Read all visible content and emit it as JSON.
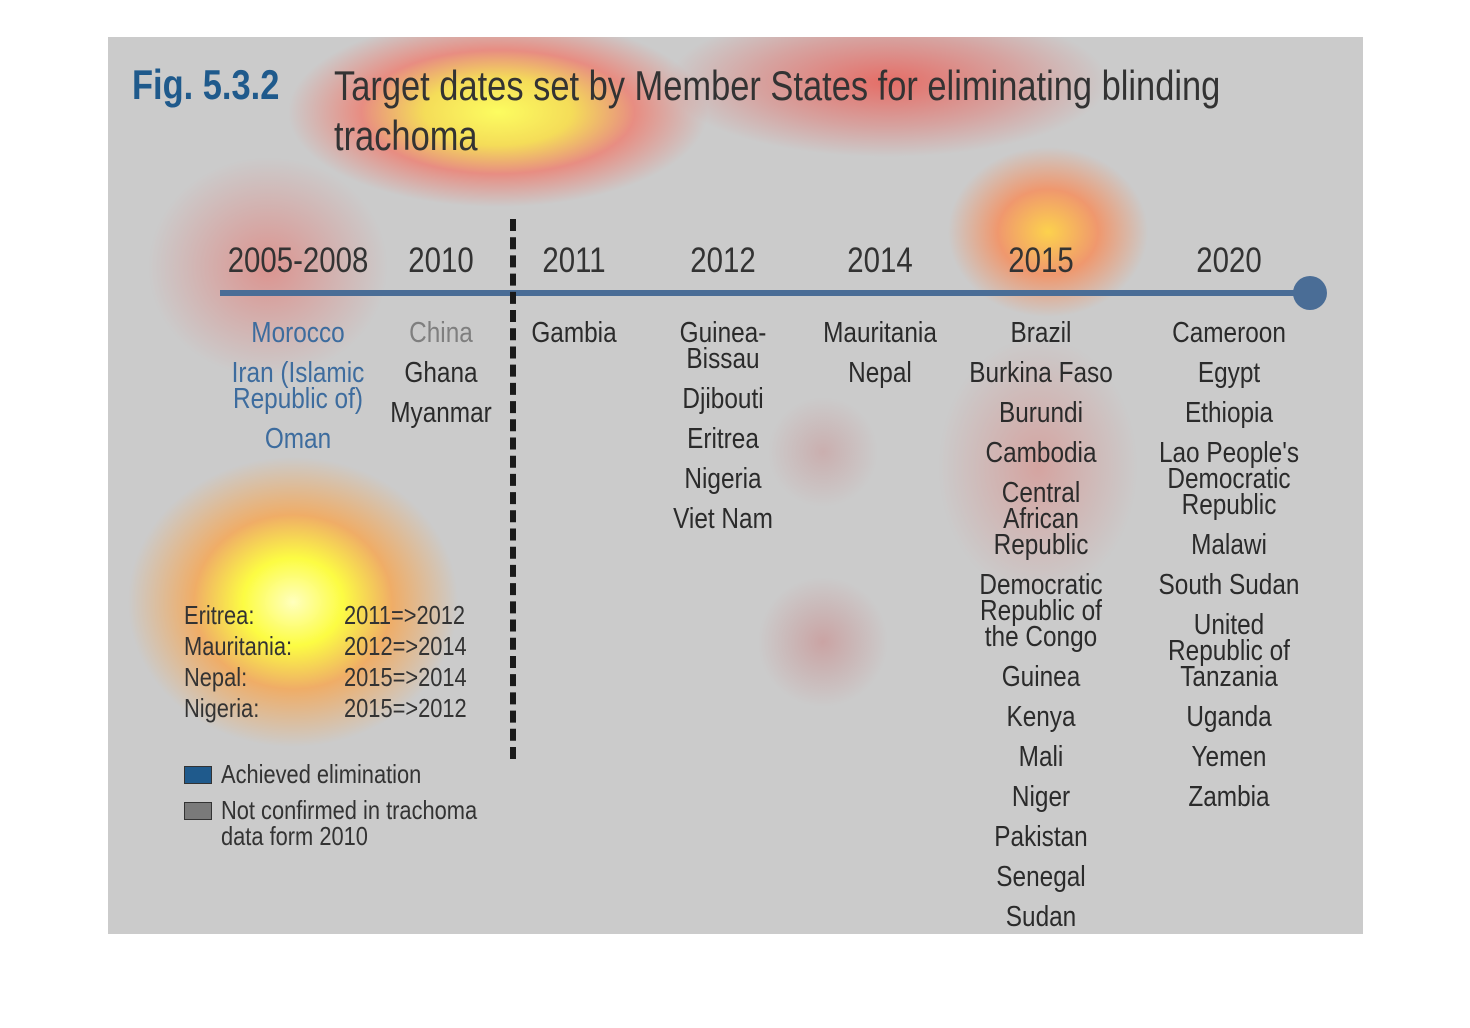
{
  "figure": {
    "label": "Fig. 5.3.2",
    "title": "Target dates set by Member States for eliminating blinding trachoma"
  },
  "colors": {
    "achieved": "#1f5a8c",
    "not_confirmed": "#7a7a7a",
    "timeline": "#4a6d96",
    "panel_bg": "#cbcbcb"
  },
  "timeline": {
    "columns": [
      {
        "year": "2005-2008",
        "countries": [
          {
            "name": "Morocco",
            "status": "achieved"
          },
          {
            "name": "Iran (Islamic Republic of)",
            "status": "achieved"
          },
          {
            "name": "Oman",
            "status": "achieved"
          }
        ]
      },
      {
        "year": "2010",
        "countries": [
          {
            "name": "China",
            "status": "not_confirmed"
          },
          {
            "name": "Ghana",
            "status": ""
          },
          {
            "name": "Myanmar",
            "status": ""
          }
        ]
      },
      {
        "year": "2011",
        "countries": [
          {
            "name": "Gambia",
            "status": ""
          }
        ]
      },
      {
        "year": "2012",
        "countries": [
          {
            "name": "Guinea-Bissau",
            "status": ""
          },
          {
            "name": "Djibouti",
            "status": ""
          },
          {
            "name": "Eritrea",
            "status": ""
          },
          {
            "name": "Nigeria",
            "status": ""
          },
          {
            "name": "Viet Nam",
            "status": ""
          }
        ]
      },
      {
        "year": "2014",
        "countries": [
          {
            "name": "Mauritania",
            "status": ""
          },
          {
            "name": "Nepal",
            "status": ""
          }
        ]
      },
      {
        "year": "2015",
        "countries": [
          {
            "name": "Brazil",
            "status": ""
          },
          {
            "name": "Burkina Faso",
            "status": ""
          },
          {
            "name": "Burundi",
            "status": ""
          },
          {
            "name": "Cambodia",
            "status": ""
          },
          {
            "name": "Central African Republic",
            "status": ""
          },
          {
            "name": "Democratic Republic of the Congo",
            "status": ""
          },
          {
            "name": "Guinea",
            "status": ""
          },
          {
            "name": "Kenya",
            "status": ""
          },
          {
            "name": "Mali",
            "status": ""
          },
          {
            "name": "Niger",
            "status": ""
          },
          {
            "name": "Pakistan",
            "status": ""
          },
          {
            "name": "Senegal",
            "status": ""
          },
          {
            "name": "Sudan",
            "status": ""
          }
        ]
      },
      {
        "year": "2020",
        "countries": [
          {
            "name": "Cameroon",
            "status": ""
          },
          {
            "name": "Egypt",
            "status": ""
          },
          {
            "name": "Ethiopia",
            "status": ""
          },
          {
            "name": "Lao People's Democratic Republic",
            "status": ""
          },
          {
            "name": "Malawi",
            "status": ""
          },
          {
            "name": "South Sudan",
            "status": ""
          },
          {
            "name": "United Republic of Tanzania",
            "status": ""
          },
          {
            "name": "Uganda",
            "status": ""
          },
          {
            "name": "Yemen",
            "status": ""
          },
          {
            "name": "Zambia",
            "status": ""
          }
        ]
      }
    ]
  },
  "changes": [
    {
      "country": "Eritrea:",
      "dates": "2011=>2012"
    },
    {
      "country": "Mauritania:",
      "dates": "2012=>2014"
    },
    {
      "country": "Nepal:",
      "dates": "2015=>2014"
    },
    {
      "country": "Nigeria:",
      "dates": "2015=>2012"
    }
  ],
  "legend": {
    "achieved_label": "Achieved elimination",
    "not_confirmed_label": "Not confirmed in trachoma data form 2010"
  }
}
